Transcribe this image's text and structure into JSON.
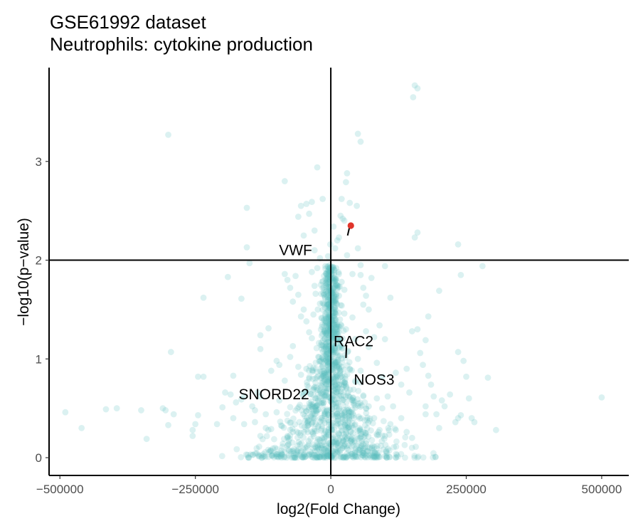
{
  "chart_data": {
    "type": "scatter",
    "title_lines": [
      "GSE61992 dataset",
      "Neutrophils: cytokine production"
    ],
    "xlabel": "log2(Fold Change)",
    "ylabel": "−log10(p−value)",
    "xlim": [
      -520000,
      550000
    ],
    "ylim": [
      -0.18,
      3.95
    ],
    "x_ticks": [
      -500000,
      -250000,
      0,
      250000,
      500000
    ],
    "x_tick_labels": [
      "−500000",
      "−250000",
      "0",
      "250000",
      "500000"
    ],
    "y_ticks": [
      0,
      1,
      2,
      3
    ],
    "y_tick_labels": [
      "0",
      "1",
      "2",
      "3"
    ],
    "reference_lines": {
      "x": 0,
      "y": 2
    },
    "grid": false,
    "colors": {
      "points": "#5bbfbf",
      "highlight": "#e0352b"
    },
    "points": [
      [
        -490000,
        0.46
      ],
      [
        -460000,
        0.3
      ],
      [
        -415000,
        0.49
      ],
      [
        -395000,
        0.5
      ],
      [
        -350000,
        0.48
      ],
      [
        -340000,
        0.19
      ],
      [
        -310000,
        0.5
      ],
      [
        -305000,
        0.48
      ],
      [
        -300000,
        0.33
      ],
      [
        -290000,
        0.44
      ],
      [
        -300000,
        3.27
      ],
      [
        -295000,
        1.07
      ],
      [
        -255000,
        0.28
      ],
      [
        -245000,
        0.82
      ],
      [
        -235000,
        0.82
      ],
      [
        -245000,
        0.43
      ],
      [
        -250000,
        0.34
      ],
      [
        -255000,
        0.22
      ],
      [
        -235000,
        1.62
      ],
      [
        -210000,
        0.34
      ],
      [
        -200000,
        0.51
      ],
      [
        -195000,
        0.66
      ],
      [
        -185000,
        0.64
      ],
      [
        -180000,
        0.4
      ],
      [
        -160000,
        0.34
      ],
      [
        -140000,
        0.48
      ],
      [
        -120000,
        0.44
      ],
      [
        -110000,
        0.29
      ],
      [
        -190000,
        1.83
      ],
      [
        -180000,
        0.83
      ],
      [
        -175000,
        0.56
      ],
      [
        -165000,
        0.59
      ],
      [
        -160000,
        0.62
      ],
      [
        -145000,
        0.52
      ],
      [
        -130000,
        0.62
      ],
      [
        -135000,
        0.66
      ],
      [
        -165000,
        1.61
      ],
      [
        -155000,
        2.53
      ],
      [
        -155000,
        2.13
      ],
      [
        -150000,
        1.97
      ],
      [
        -130000,
        1.24
      ],
      [
        -130000,
        1.1
      ],
      [
        -115000,
        1.31
      ],
      [
        -110000,
        0.88
      ],
      [
        -100000,
        0.98
      ],
      [
        -95000,
        0.94
      ],
      [
        -85000,
        0.78
      ],
      [
        -75000,
        1.02
      ],
      [
        -70000,
        1.13
      ],
      [
        -60000,
        0.92
      ],
      [
        -55000,
        0.84
      ],
      [
        -50000,
        0.66
      ],
      [
        -45000,
        0.9
      ],
      [
        -40000,
        0.8
      ],
      [
        -85000,
        1.86
      ],
      [
        -80000,
        1.8
      ],
      [
        -75000,
        1.72
      ],
      [
        -70000,
        1.58
      ],
      [
        -65000,
        1.84
      ],
      [
        -60000,
        1.65
      ],
      [
        -55000,
        1.43
      ],
      [
        -50000,
        1.5
      ],
      [
        -45000,
        1.38
      ],
      [
        -40000,
        1.27
      ],
      [
        -85000,
        2.8
      ],
      [
        -40000,
        2.47
      ],
      [
        -35000,
        2.59
      ],
      [
        -30000,
        2.3
      ],
      [
        -25000,
        2.94
      ],
      [
        -30000,
        2.1
      ],
      [
        -20000,
        2.02
      ],
      [
        -15000,
        2.62
      ],
      [
        -60000,
        2.44
      ],
      [
        -55000,
        2.55
      ],
      [
        -50000,
        2.25
      ],
      [
        -45000,
        2.57
      ],
      [
        -35000,
        1.21
      ],
      [
        -32000,
        1.45
      ],
      [
        -28000,
        1.66
      ],
      [
        -24000,
        1.5
      ],
      [
        -20000,
        0.68
      ],
      [
        -16000,
        1.01
      ],
      [
        -12000,
        0.86
      ],
      [
        -8000,
        1.37
      ],
      [
        -5000,
        1.58
      ],
      [
        -3000,
        1.78
      ],
      [
        -2000,
        1.95
      ],
      [
        -1000,
        2.16
      ],
      [
        5000,
        2.34
      ],
      [
        8000,
        2.12
      ],
      [
        12000,
        2.2
      ],
      [
        15000,
        2.23
      ],
      [
        18000,
        2.45
      ],
      [
        22000,
        2.42
      ],
      [
        25000,
        2.4
      ],
      [
        30000,
        2.05
      ],
      [
        20000,
        2.62
      ],
      [
        28000,
        2.79
      ],
      [
        30000,
        2.88
      ],
      [
        35000,
        2.58
      ],
      [
        48000,
        2.55
      ],
      [
        50000,
        2.12
      ],
      [
        55000,
        1.95
      ],
      [
        55000,
        1.85
      ],
      [
        3000,
        1.24
      ],
      [
        5000,
        1.05
      ],
      [
        8000,
        1.52
      ],
      [
        10000,
        1.75
      ],
      [
        12000,
        1.35
      ],
      [
        15000,
        1.64
      ],
      [
        18000,
        1.12
      ],
      [
        20000,
        0.92
      ],
      [
        25000,
        1.46
      ],
      [
        28000,
        1.3
      ],
      [
        32000,
        1.08
      ],
      [
        35000,
        0.9
      ],
      [
        40000,
        1.42
      ],
      [
        45000,
        1.2
      ],
      [
        50000,
        1.0
      ],
      [
        55000,
        0.88
      ],
      [
        60000,
        1.55
      ],
      [
        65000,
        1.28
      ],
      [
        70000,
        1.12
      ],
      [
        75000,
        1.82
      ],
      [
        80000,
        1.22
      ],
      [
        85000,
        0.96
      ],
      [
        95000,
        0.82
      ],
      [
        100000,
        1.2
      ],
      [
        105000,
        0.62
      ],
      [
        110000,
        1.62
      ],
      [
        115000,
        0.52
      ],
      [
        120000,
        0.86
      ],
      [
        130000,
        0.74
      ],
      [
        140000,
        0.9
      ],
      [
        145000,
        0.66
      ],
      [
        150000,
        1.28
      ],
      [
        160000,
        1.3
      ],
      [
        165000,
        1.06
      ],
      [
        170000,
        0.94
      ],
      [
        175000,
        0.52
      ],
      [
        180000,
        0.83
      ],
      [
        185000,
        0.74
      ],
      [
        190000,
        0.62
      ],
      [
        175000,
        0.44
      ],
      [
        195000,
        0.44
      ],
      [
        200000,
        0.3
      ],
      [
        205000,
        0.58
      ],
      [
        210000,
        0.52
      ],
      [
        220000,
        0.64
      ],
      [
        230000,
        0.36
      ],
      [
        235000,
        0.4
      ],
      [
        240000,
        0.43
      ],
      [
        250000,
        0.82
      ],
      [
        255000,
        0.6
      ],
      [
        260000,
        0.4
      ],
      [
        265000,
        0.36
      ],
      [
        235000,
        1.07
      ],
      [
        245000,
        0.98
      ],
      [
        290000,
        0.81
      ],
      [
        305000,
        0.28
      ],
      [
        500000,
        0.61
      ],
      [
        155000,
        3.77
      ],
      [
        152000,
        3.65
      ],
      [
        160000,
        3.74
      ],
      [
        160000,
        2.28
      ],
      [
        155000,
        2.23
      ],
      [
        180000,
        1.43
      ],
      [
        200000,
        1.69
      ],
      [
        235000,
        2.16
      ],
      [
        240000,
        1.85
      ],
      [
        280000,
        1.94
      ],
      [
        175000,
        1.19
      ],
      [
        50000,
        3.28
      ],
      [
        55000,
        3.2
      ],
      [
        100000,
        1.94
      ],
      [
        70000,
        1.5
      ],
      [
        90000,
        1.34
      ],
      [
        60000,
        1.72
      ],
      [
        40000,
        1.86
      ],
      [
        65000,
        1.64
      ],
      [
        -10000,
        1.94
      ],
      [
        -5000,
        2.04
      ],
      [
        -20000,
        1.56
      ],
      [
        -25000,
        1.92
      ],
      [
        -30000,
        1.74
      ],
      [
        -35000,
        1.88
      ],
      [
        -15000,
        1.72
      ],
      [
        -10000,
        1.46
      ],
      [
        10000,
        1.92
      ],
      [
        15000,
        1.86
      ],
      [
        20000,
        1.78
      ],
      [
        25000,
        1.7
      ],
      [
        -95000,
        0.58
      ],
      [
        -90000,
        0.32
      ],
      [
        -100000,
        0.46
      ],
      [
        -120000,
        0.3
      ],
      [
        -130000,
        0.22
      ],
      [
        -140000,
        0.36
      ],
      [
        -80000,
        0.2
      ],
      [
        -70000,
        0.26
      ],
      [
        80000,
        0.4
      ],
      [
        90000,
        0.28
      ],
      [
        100000,
        0.22
      ],
      [
        110000,
        0.34
      ],
      [
        120000,
        0.28
      ],
      [
        130000,
        0.4
      ],
      [
        140000,
        0.26
      ],
      [
        150000,
        0.2
      ],
      [
        60000,
        0.26
      ],
      [
        70000,
        0.52
      ],
      [
        85000,
        0.6
      ],
      [
        95000,
        0.5
      ]
    ],
    "highlight": {
      "label": "VWF",
      "x": 37000,
      "y": 2.35
    },
    "gene_labels": [
      {
        "text": "VWF",
        "x": -65000,
        "y": 2.1
      },
      {
        "text": "RAC2",
        "x": 42000,
        "y": 1.18
      },
      {
        "text": "NOS3",
        "x": 80000,
        "y": 0.79
      },
      {
        "text": "SNORD22",
        "x": -105000,
        "y": 0.64
      }
    ],
    "label_segments": [
      {
        "label": "VWF",
        "from": [
          31000,
          2.25
        ],
        "to": [
          36000,
          2.37
        ]
      },
      {
        "label": "RAC2",
        "from": [
          28000,
          1.01
        ],
        "to": [
          29000,
          1.14
        ]
      }
    ]
  }
}
